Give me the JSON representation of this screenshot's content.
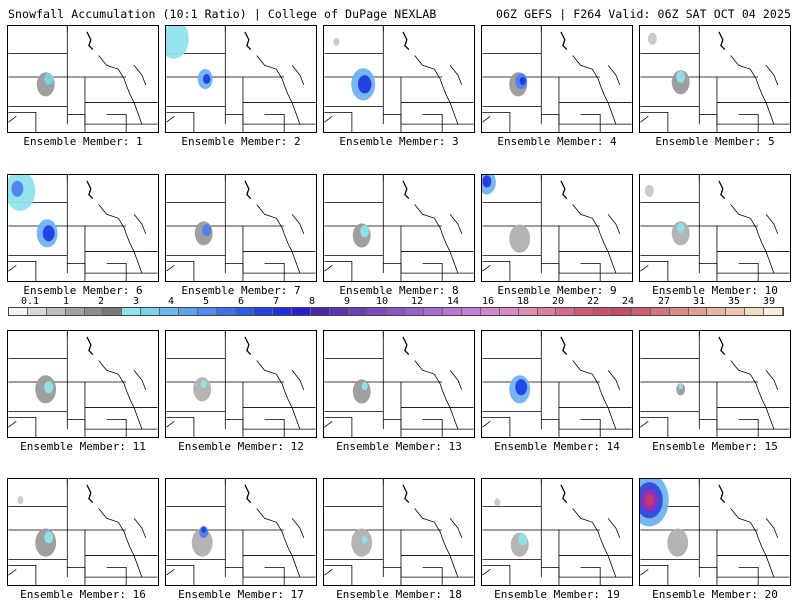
{
  "header": {
    "left": "Snowfall Accumulation (10:1 Ratio) | College of DuPage NEXLAB",
    "right": "06Z GEFS | F264 Valid: 06Z SAT OCT 04 2025"
  },
  "member_label_prefix": "Ensemble Member: ",
  "members": [
    {
      "number": "1",
      "blobs": [
        [
          0.25,
          0.55,
          0.06,
          "#9a9a9a"
        ],
        [
          0.27,
          0.5,
          0.03,
          "#7bd6e0"
        ]
      ]
    },
    {
      "number": "2",
      "blobs": [
        [
          0.05,
          0.12,
          0.1,
          "#8fe3ec"
        ],
        [
          0.26,
          0.5,
          0.05,
          "#6fb3f0"
        ],
        [
          0.27,
          0.5,
          0.025,
          "#1f3fe6"
        ]
      ]
    },
    {
      "number": "3",
      "blobs": [
        [
          0.26,
          0.55,
          0.08,
          "#6fb3f0"
        ],
        [
          0.27,
          0.55,
          0.045,
          "#2038e0"
        ],
        [
          0.08,
          0.15,
          0.02,
          "#c8c8c8"
        ]
      ]
    },
    {
      "number": "4",
      "blobs": [
        [
          0.24,
          0.55,
          0.06,
          "#9a9a9a"
        ],
        [
          0.26,
          0.52,
          0.04,
          "#4f7fee"
        ],
        [
          0.27,
          0.52,
          0.02,
          "#2038e0"
        ]
      ]
    },
    {
      "number": "5",
      "blobs": [
        [
          0.27,
          0.53,
          0.06,
          "#9a9a9a"
        ],
        [
          0.27,
          0.48,
          0.03,
          "#8fe3ec"
        ],
        [
          0.08,
          0.12,
          0.03,
          "#c8c8c8"
        ]
      ]
    },
    {
      "number": "6",
      "blobs": [
        [
          0.08,
          0.15,
          0.1,
          "#8fe3ec"
        ],
        [
          0.06,
          0.13,
          0.04,
          "#4f7fee"
        ],
        [
          0.26,
          0.55,
          0.07,
          "#6fb3f0"
        ],
        [
          0.27,
          0.55,
          0.04,
          "#1f3fe6"
        ]
      ]
    },
    {
      "number": "7",
      "blobs": [
        [
          0.25,
          0.55,
          0.06,
          "#9a9a9a"
        ],
        [
          0.27,
          0.52,
          0.03,
          "#4f7fee"
        ]
      ]
    },
    {
      "number": "8",
      "blobs": [
        [
          0.25,
          0.57,
          0.06,
          "#9a9a9a"
        ],
        [
          0.27,
          0.53,
          0.03,
          "#8fe3ec"
        ]
      ]
    },
    {
      "number": "9",
      "blobs": [
        [
          0.03,
          0.07,
          0.06,
          "#6fb3f0"
        ],
        [
          0.03,
          0.06,
          0.03,
          "#2038e0"
        ],
        [
          0.25,
          0.6,
          0.07,
          "#b0b0b0"
        ]
      ]
    },
    {
      "number": "10",
      "blobs": [
        [
          0.27,
          0.55,
          0.06,
          "#b0b0b0"
        ],
        [
          0.27,
          0.5,
          0.025,
          "#8fe3ec"
        ],
        [
          0.06,
          0.15,
          0.03,
          "#c8c8c8"
        ]
      ]
    },
    {
      "number": "11",
      "blobs": [
        [
          0.25,
          0.55,
          0.07,
          "#9a9a9a"
        ],
        [
          0.27,
          0.53,
          0.03,
          "#8fe3ec"
        ]
      ]
    },
    {
      "number": "12",
      "blobs": [
        [
          0.24,
          0.55,
          0.06,
          "#b0b0b0"
        ],
        [
          0.25,
          0.5,
          0.02,
          "#8fe3ec"
        ]
      ]
    },
    {
      "number": "13",
      "blobs": [
        [
          0.25,
          0.57,
          0.06,
          "#9a9a9a"
        ],
        [
          0.27,
          0.52,
          0.02,
          "#8fe3ec"
        ]
      ]
    },
    {
      "number": "14",
      "blobs": [
        [
          0.25,
          0.55,
          0.07,
          "#6fb3f0"
        ],
        [
          0.26,
          0.53,
          0.04,
          "#1f3fe6"
        ]
      ]
    },
    {
      "number": "15",
      "blobs": [
        [
          0.27,
          0.55,
          0.03,
          "#9a9a9a"
        ],
        [
          0.27,
          0.52,
          0.015,
          "#8fe3ec"
        ]
      ]
    },
    {
      "number": "16",
      "blobs": [
        [
          0.25,
          0.6,
          0.07,
          "#9a9a9a"
        ],
        [
          0.27,
          0.55,
          0.03,
          "#8fe3ec"
        ],
        [
          0.08,
          0.2,
          0.02,
          "#c8c8c8"
        ]
      ]
    },
    {
      "number": "17",
      "blobs": [
        [
          0.24,
          0.6,
          0.07,
          "#b0b0b0"
        ],
        [
          0.25,
          0.5,
          0.03,
          "#4f7fee"
        ],
        [
          0.25,
          0.48,
          0.015,
          "#1f3fe6"
        ]
      ]
    },
    {
      "number": "18",
      "blobs": [
        [
          0.25,
          0.6,
          0.07,
          "#b0b0b0"
        ],
        [
          0.27,
          0.57,
          0.02,
          "#8fe3ec"
        ]
      ]
    },
    {
      "number": "19",
      "blobs": [
        [
          0.25,
          0.62,
          0.06,
          "#b0b0b0"
        ],
        [
          0.27,
          0.57,
          0.03,
          "#8fe3ec"
        ],
        [
          0.1,
          0.22,
          0.02,
          "#c8c8c8"
        ]
      ]
    },
    {
      "number": "20",
      "blobs": [
        [
          0.06,
          0.2,
          0.13,
          "#6fb3f0"
        ],
        [
          0.06,
          0.2,
          0.09,
          "#3448d8"
        ],
        [
          0.06,
          0.2,
          0.055,
          "#9b2bb0"
        ],
        [
          0.06,
          0.2,
          0.03,
          "#c23a6a"
        ],
        [
          0.25,
          0.6,
          0.07,
          "#b0b0b0"
        ]
      ]
    }
  ],
  "colorbar": {
    "colors": [
      "#f4f4f4",
      "#d9d9d9",
      "#bdbdbd",
      "#a3a3a3",
      "#8e8e8e",
      "#7a7a7a",
      "#8fe3ec",
      "#7ad1ef",
      "#69b9f0",
      "#5aa3f0",
      "#4d8bee",
      "#3d72ec",
      "#305ae8",
      "#2442e4",
      "#1f2ee0",
      "#2a1fd0",
      "#4a2aa8",
      "#5a35b0",
      "#6a40b8",
      "#7a4bbf",
      "#8a55c5",
      "#9a60cb",
      "#aa6bd1",
      "#ba76d6",
      "#c67dd7",
      "#d085cc",
      "#d78bc0",
      "#dc8db2",
      "#de7ea0",
      "#d86a8c",
      "#d05a7c",
      "#c94e6f",
      "#c64a6a",
      "#c95f73",
      "#d2777e",
      "#dc8c88",
      "#e2a092",
      "#e8b59f",
      "#eec8ae",
      "#f3dcc4",
      "#f8ecdc"
    ],
    "labels": [
      "0.1",
      "1",
      "2",
      "3",
      "4",
      "5",
      "6",
      "7",
      "8",
      "9",
      "10",
      "12",
      "14",
      "16",
      "18",
      "20",
      "22",
      "24",
      "27",
      "31",
      "35",
      "39"
    ]
  }
}
